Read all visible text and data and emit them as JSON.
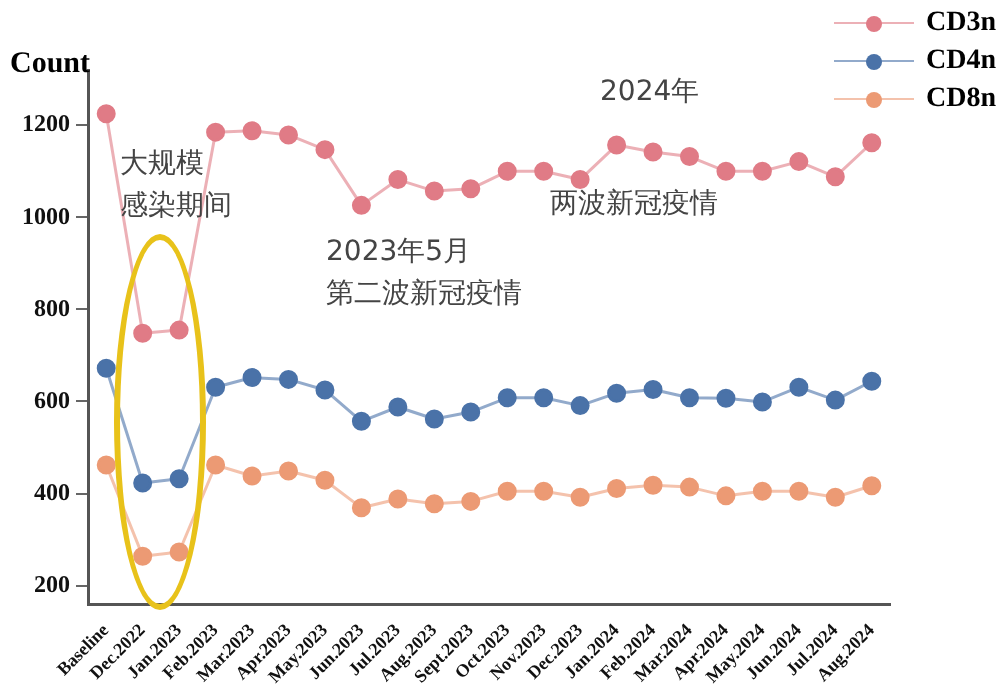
{
  "chart_data": {
    "type": "line",
    "ylabel": "Count",
    "categories": [
      "Baseline",
      "Dec.2022",
      "Jan.2023",
      "Feb.2023",
      "Mar.2023",
      "Apr.2023",
      "May.2023",
      "Jun.2023",
      "Jul.2023",
      "Aug.2023",
      "Sept.2023",
      "Oct.2023",
      "Nov.2023",
      "Dec.2023",
      "Jan.2024",
      "Feb.2024",
      "Mar.2024",
      "Apr.2024",
      "May.2024",
      "Jun.2024",
      "Jul.2024",
      "Aug.2024"
    ],
    "series": [
      {
        "name": "CD3n",
        "color": "#e07b86",
        "values": [
          1225,
          748,
          755,
          1185,
          1188,
          1179,
          1147,
          1026,
          1082,
          1057,
          1062,
          1100,
          1100,
          1082,
          1157,
          1142,
          1132,
          1100,
          1100,
          1121,
          1088,
          1162
        ]
      },
      {
        "name": "CD4n",
        "color": "#4a72a8",
        "values": [
          672,
          423,
          432,
          631,
          652,
          648,
          625,
          557,
          588,
          562,
          577,
          608,
          608,
          591,
          618,
          626,
          608,
          607,
          599,
          631,
          603,
          644
        ]
      },
      {
        "name": "CD8n",
        "color": "#ec9a74",
        "values": [
          462,
          264,
          273,
          462,
          438,
          449,
          429,
          369,
          388,
          378,
          383,
          405,
          405,
          392,
          411,
          418,
          414,
          395,
          405,
          405,
          392,
          417
        ]
      }
    ],
    "ylim": [
      160,
      1320
    ],
    "yticks": [
      200,
      400,
      600,
      800,
      1000,
      1200
    ],
    "grid": false,
    "legend": "top right",
    "marker": "circle",
    "line_style": "solid",
    "annotations": [
      "大规模",
      "感染期间",
      "2023年5月",
      "第二波新冠疫情",
      "2024年",
      "两波新冠疫情"
    ]
  }
}
